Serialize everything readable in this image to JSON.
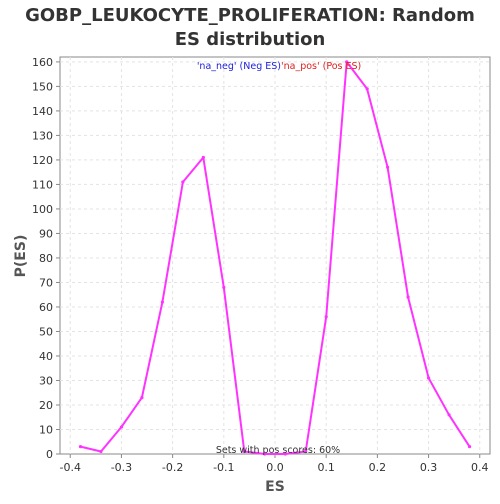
{
  "chart_data": {
    "type": "line",
    "title_line1": "GOBP_LEUKOCYTE_PROLIFERATION: Random",
    "title_line2": "ES distribution",
    "xlabel": "ES",
    "ylabel": "P(ES)",
    "xlim": [
      -0.42,
      0.42
    ],
    "ylim": [
      0,
      162
    ],
    "xticks": [
      -0.4,
      -0.3,
      -0.2,
      -0.1,
      0.0,
      0.1,
      0.2,
      0.3,
      0.4
    ],
    "xtick_labels": [
      "-0.4",
      "-0.3",
      "-0.2",
      "-0.1",
      "0.0",
      "0.1",
      "0.2",
      "0.3",
      "0.4"
    ],
    "yticks": [
      0,
      10,
      20,
      30,
      40,
      50,
      60,
      70,
      80,
      90,
      100,
      110,
      120,
      130,
      140,
      150,
      160
    ],
    "grid": true,
    "legend": {
      "neg_label": "'na_neg' (Neg ES)",
      "pos_label": "'na_pos' (Pos ES)",
      "neg_color": "#2020dd",
      "pos_color": "#dd2020",
      "placement": "top-center"
    },
    "annotation": "Sets with pos scores: 60%",
    "series": [
      {
        "color": "#ff33ff",
        "points": [
          [
            -0.38,
            3
          ],
          [
            -0.34,
            1
          ],
          [
            -0.3,
            11
          ],
          [
            -0.26,
            23
          ],
          [
            -0.22,
            62
          ],
          [
            -0.18,
            111
          ],
          [
            -0.14,
            121
          ],
          [
            -0.1,
            68
          ],
          [
            -0.06,
            1
          ],
          [
            -0.02,
            0
          ],
          [
            0.02,
            0
          ],
          [
            0.06,
            1
          ],
          [
            0.1,
            56
          ],
          [
            0.14,
            160
          ],
          [
            0.18,
            149
          ],
          [
            0.22,
            117
          ],
          [
            0.26,
            64
          ],
          [
            0.3,
            31
          ],
          [
            0.34,
            16
          ],
          [
            0.38,
            3
          ]
        ]
      }
    ],
    "colors": {
      "plot_background": "#ffffff",
      "grid": "#e3e3e3",
      "axis": "#888888",
      "line": "#ff33ff"
    }
  }
}
